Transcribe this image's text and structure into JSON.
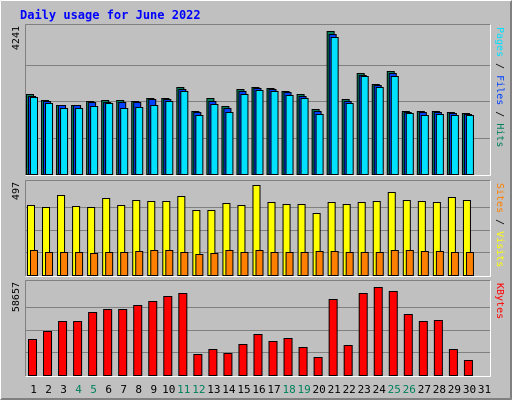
{
  "chart_data": {
    "type": "bar",
    "title": "Daily usage for June 2022",
    "categories": [
      "1",
      "2",
      "3",
      "4",
      "5",
      "6",
      "7",
      "8",
      "9",
      "10",
      "11",
      "12",
      "13",
      "14",
      "15",
      "16",
      "17",
      "18",
      "19",
      "20",
      "21",
      "22",
      "23",
      "24",
      "25",
      "26",
      "27",
      "28",
      "29",
      "30",
      "31"
    ],
    "weekend_categories": [
      "4",
      "5",
      "11",
      "12",
      "18",
      "19",
      "25",
      "26"
    ],
    "panels": [
      {
        "id": "hits",
        "ylim": [
          0,
          4241
        ],
        "max_label": "4241",
        "right_label_parts": [
          "Pages",
          " / ",
          "Files",
          " / ",
          "Hits"
        ],
        "series": [
          {
            "name": "Hits",
            "values": [
              2310,
              2160,
              2000,
              2000,
              2130,
              2140,
              2140,
              2120,
              2200,
              2200,
              2530,
              1820,
              2200,
              1980,
              2470,
              2520,
              2490,
              2420,
              2310,
              1900,
              4160,
              2170,
              2940,
              2600,
              2990,
              1830,
              1820,
              1820,
              1800,
              1770,
              null
            ]
          },
          {
            "name": "Files",
            "values": [
              2270,
              2130,
              1990,
              1990,
              2100,
              2100,
              2080,
              2080,
              2190,
              2170,
              2480,
              1800,
              2130,
              1910,
              2410,
              2490,
              2460,
              2370,
              2280,
              1840,
              4080,
              2130,
              2890,
              2590,
              2940,
              1800,
              1790,
              1790,
              1770,
              1740,
              null
            ]
          },
          {
            "name": "Pages",
            "values": [
              2230,
              2050,
              1930,
              1920,
              1980,
              2050,
              1930,
              1950,
              2010,
              2110,
              2410,
              1710,
              2040,
              1790,
              2320,
              2450,
              2400,
              2300,
              2210,
              1740,
              3970,
              2060,
              2840,
              2540,
              2860,
              1760,
              1720,
              1730,
              1710,
              1710,
              null
            ]
          }
        ]
      },
      {
        "id": "visits",
        "ylim": [
          0,
          497
        ],
        "max_label": "497",
        "right_label_parts": [
          "Sites",
          " / ",
          "Visits"
        ],
        "series": [
          {
            "name": "Visits",
            "values": [
              381,
              370,
              438,
              376,
              370,
              422,
              383,
              409,
              403,
              405,
              433,
              354,
              356,
              393,
              384,
              489,
              397,
              389,
              386,
              340,
              397,
              388,
              397,
              406,
              454,
              412,
              404,
              398,
              424,
              410,
              null
            ]
          },
          {
            "name": "Sites",
            "values": [
              136,
              123,
              127,
              125,
              122,
              125,
              125,
              131,
              134,
              134,
              124,
              113,
              120,
              134,
              127,
              135,
              125,
              123,
              127,
              133,
              131,
              128,
              127,
              127,
              136,
              136,
              129,
              129,
              124,
              125,
              null
            ]
          }
        ]
      },
      {
        "id": "kbytes",
        "ylim": [
          0,
          58657
        ],
        "max_label": "58657",
        "right_label_parts": [
          "KBytes"
        ],
        "series": [
          {
            "name": "KBytes",
            "values": [
              23460,
              28280,
              35070,
              34770,
              40340,
              42390,
              42470,
              45130,
              47730,
              51240,
              53080,
              13700,
              17040,
              14390,
              20070,
              26310,
              22230,
              23550,
              18160,
              11680,
              48940,
              19100,
              53130,
              56820,
              54030,
              39640,
              34640,
              35670,
              17060,
              9710,
              null
            ]
          }
        ]
      }
    ],
    "colors": {
      "hits": "#00805c",
      "files": "#0040ff",
      "pages": "#00e0ff",
      "visits": "#ffff00",
      "sites": "#ff8000",
      "kbytes": "#ff0000",
      "title": "#0000ff",
      "weekday_label": "#000000",
      "weekend_label": "#00805c"
    },
    "grid": true,
    "legend": "right"
  }
}
